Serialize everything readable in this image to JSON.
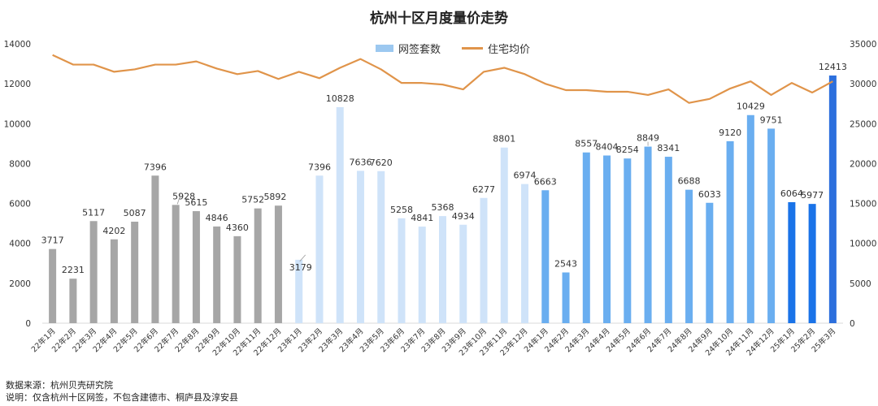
{
  "title": "杭州十区月度量价走势",
  "legend": {
    "bars_label": "网签套数",
    "line_label": "住宅均价"
  },
  "footer": {
    "source": "数据来源：杭州贝壳研究院",
    "note": "说明：仅含杭州十区网签，不包含建德市、桐庐县及淳安县"
  },
  "colors": {
    "y2022": "#a6a6a6",
    "y2023": "#cfe3f9",
    "y2024": "#6aaef0",
    "y2025": "#1a73e8",
    "y2025_last": "#2c6fdd",
    "line": "#e0944a"
  },
  "chart_data": {
    "type": "bar",
    "categories": [
      "22年1月",
      "22年2月",
      "22年3月",
      "22年4月",
      "22年5月",
      "22年6月",
      "22年7月",
      "22年8月",
      "22年9月",
      "22年10月",
      "22年11月",
      "22年12月",
      "23年1月",
      "23年2月",
      "23年3月",
      "23年4月",
      "23年5月",
      "23年6月",
      "23年7月",
      "23年8月",
      "23年9月",
      "23年10月",
      "23年11月",
      "23年12月",
      "24年1月",
      "24年2月",
      "24年3月",
      "24年4月",
      "24年5月",
      "24年6月",
      "24年7月",
      "24年8月",
      "24年9月",
      "24年10月",
      "24年11月",
      "24年12月",
      "25年1月",
      "25年2月",
      "25年3月"
    ],
    "series": [
      {
        "name": "网签套数",
        "axis": "left",
        "values": [
          3717,
          2231,
          5117,
          4202,
          5087,
          7396,
          5928,
          5615,
          4846,
          4360,
          5752,
          5892,
          3179,
          7396,
          10828,
          7636,
          7620,
          5258,
          4841,
          5368,
          4934,
          6277,
          8801,
          6974,
          6663,
          2543,
          8557,
          8404,
          8254,
          8849,
          8341,
          6688,
          6033,
          9120,
          10429,
          9751,
          6064,
          5977,
          12413
        ]
      },
      {
        "name": "住宅均价",
        "axis": "right",
        "type": "line",
        "values": [
          33600,
          32400,
          32400,
          31500,
          31800,
          32400,
          32400,
          32800,
          31900,
          31200,
          31600,
          30600,
          31500,
          30700,
          32000,
          33100,
          31800,
          30100,
          30100,
          29900,
          29300,
          31500,
          32000,
          31200,
          30000,
          29200,
          29200,
          29000,
          29000,
          28600,
          29300,
          27600,
          28100,
          29400,
          30300,
          28600,
          30100,
          28900,
          30300
        ]
      }
    ],
    "yticks_left": [
      0,
      2000,
      4000,
      6000,
      8000,
      10000,
      12000,
      14000
    ],
    "yticks_right": [
      0,
      5000,
      10000,
      15000,
      20000,
      25000,
      30000,
      35000
    ],
    "ylim_left": [
      0,
      14000
    ],
    "ylim_right": [
      0,
      35000
    ],
    "grid": false
  }
}
